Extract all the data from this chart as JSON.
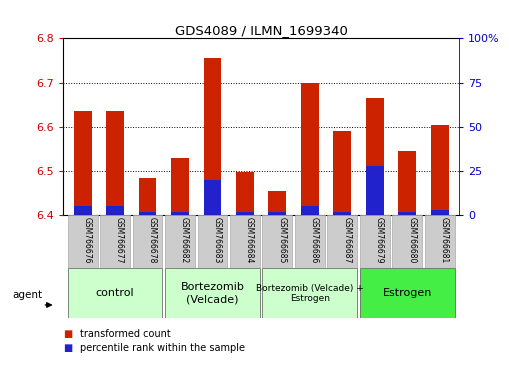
{
  "title": "GDS4089 / ILMN_1699340",
  "samples": [
    "GSM766676",
    "GSM766677",
    "GSM766678",
    "GSM766682",
    "GSM766683",
    "GSM766684",
    "GSM766685",
    "GSM766686",
    "GSM766687",
    "GSM766679",
    "GSM766680",
    "GSM766681"
  ],
  "red_values": [
    6.635,
    6.635,
    6.485,
    6.53,
    6.755,
    6.497,
    6.455,
    6.7,
    6.59,
    6.665,
    6.545,
    6.605
  ],
  "blue_percentiles": [
    5,
    5,
    2,
    2,
    20,
    2,
    2,
    5,
    2,
    28,
    2,
    3
  ],
  "ymin": 6.4,
  "ymax": 6.8,
  "y2min": 0,
  "y2max": 100,
  "yticks": [
    6.4,
    6.5,
    6.6,
    6.7,
    6.8
  ],
  "y2ticks": [
    0,
    25,
    50,
    75,
    100
  ],
  "y2ticklabels": [
    "0",
    "25",
    "50",
    "75",
    "100%"
  ],
  "bar_color_red": "#CC2200",
  "bar_color_blue": "#2222CC",
  "bar_width": 0.55,
  "groups": [
    {
      "label": "control",
      "start": 0,
      "end": 2,
      "color": "#ccffcc",
      "fontsize": 8
    },
    {
      "label": "Bortezomib\n(Velcade)",
      "start": 3,
      "end": 5,
      "color": "#ccffcc",
      "fontsize": 8
    },
    {
      "label": "Bortezomib (Velcade) +\nEstrogen",
      "start": 6,
      "end": 8,
      "color": "#ccffcc",
      "fontsize": 6.5
    },
    {
      "label": "Estrogen",
      "start": 9,
      "end": 11,
      "color": "#44ee44",
      "fontsize": 8
    }
  ],
  "legend_items": [
    {
      "color": "#CC2200",
      "label": "transformed count"
    },
    {
      "color": "#2222CC",
      "label": "percentile rank within the sample"
    }
  ],
  "agent_label": "agent",
  "left_tick_color": "#CC0000",
  "right_tick_color": "#0000CC",
  "sample_box_color": "#cccccc"
}
